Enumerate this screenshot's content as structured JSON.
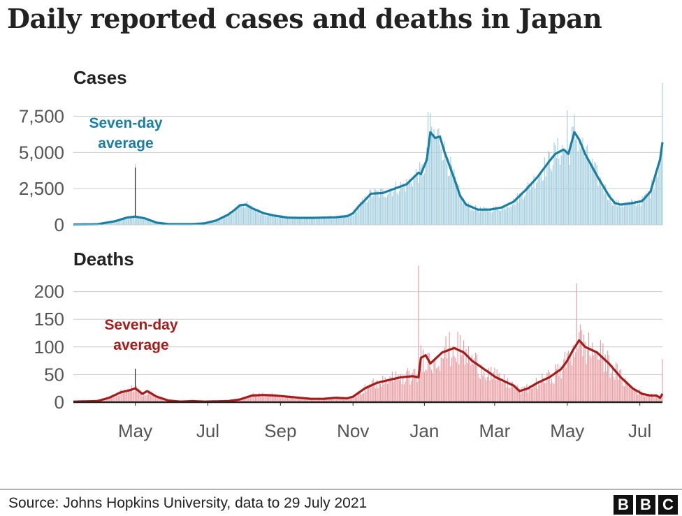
{
  "title": "Daily reported cases and deaths in Japan",
  "source": "Source: Johns Hopkins University, data to 29 July 2021",
  "logo": [
    "B",
    "B",
    "C"
  ],
  "colors": {
    "cases_bar": "#a6cfdf",
    "cases_line": "#1a7fa0",
    "deaths_bar": "#e8a1a6",
    "deaths_line": "#a31d1d",
    "grid": "#cccccc",
    "axis": "#222222"
  },
  "chart_data": [
    {
      "type": "bar+line",
      "title": "Cases",
      "annotation": [
        "Seven-day",
        "average"
      ],
      "ylim": [
        0,
        9500
      ],
      "yticks": [
        0,
        2500,
        5000,
        7500
      ],
      "ytick_labels": [
        "0",
        "2,500",
        "5,000",
        "7,500"
      ],
      "x_start_day": 0,
      "x_end_day": 495,
      "xtick_days": [
        52,
        113,
        174,
        235,
        295,
        354,
        415,
        476
      ],
      "xtick_labels": [
        "May",
        "Jul",
        "Sep",
        "Nov",
        "Jan",
        "Mar",
        "May",
        "Jul"
      ],
      "series_name": "Seven-day average",
      "average_keypoints": [
        [
          0,
          20
        ],
        [
          20,
          40
        ],
        [
          35,
          250
        ],
        [
          45,
          500
        ],
        [
          52,
          570
        ],
        [
          60,
          450
        ],
        [
          70,
          150
        ],
        [
          80,
          50
        ],
        [
          100,
          50
        ],
        [
          110,
          100
        ],
        [
          120,
          300
        ],
        [
          130,
          700
        ],
        [
          135,
          1000
        ],
        [
          140,
          1350
        ],
        [
          145,
          1400
        ],
        [
          150,
          1150
        ],
        [
          160,
          800
        ],
        [
          170,
          620
        ],
        [
          180,
          500
        ],
        [
          190,
          480
        ],
        [
          200,
          480
        ],
        [
          210,
          500
        ],
        [
          220,
          520
        ],
        [
          230,
          600
        ],
        [
          235,
          800
        ],
        [
          240,
          1300
        ],
        [
          245,
          1700
        ],
        [
          250,
          2150
        ],
        [
          260,
          2200
        ],
        [
          270,
          2500
        ],
        [
          280,
          2800
        ],
        [
          290,
          3600
        ],
        [
          292,
          3500
        ],
        [
          297,
          4500
        ],
        [
          300,
          6400
        ],
        [
          304,
          6000
        ],
        [
          308,
          6100
        ],
        [
          312,
          5000
        ],
        [
          320,
          3200
        ],
        [
          325,
          2000
        ],
        [
          330,
          1400
        ],
        [
          340,
          1050
        ],
        [
          350,
          1050
        ],
        [
          360,
          1200
        ],
        [
          370,
          1600
        ],
        [
          380,
          2400
        ],
        [
          390,
          3300
        ],
        [
          400,
          4400
        ],
        [
          405,
          4900
        ],
        [
          412,
          5200
        ],
        [
          416,
          4900
        ],
        [
          421,
          6400
        ],
        [
          425,
          5900
        ],
        [
          430,
          4900
        ],
        [
          440,
          3400
        ],
        [
          450,
          2000
        ],
        [
          455,
          1500
        ],
        [
          460,
          1400
        ],
        [
          470,
          1500
        ],
        [
          478,
          1650
        ],
        [
          485,
          2300
        ],
        [
          490,
          3700
        ],
        [
          493,
          4500
        ],
        [
          495,
          5700
        ]
      ],
      "bar_noise": 0.22,
      "bar_spikes": [
        [
          52,
          4200
        ],
        [
          298,
          7800
        ],
        [
          415,
          7900
        ],
        [
          421,
          7600
        ],
        [
          495,
          9800
        ]
      ],
      "marker_day": 52
    },
    {
      "type": "bar+line",
      "title": "Deaths",
      "annotation": [
        "Seven-day",
        "average"
      ],
      "ylim": [
        0,
        250
      ],
      "yticks": [
        0,
        50,
        100,
        150,
        200
      ],
      "ytick_labels": [
        "0",
        "50",
        "100",
        "150",
        "200"
      ],
      "x_start_day": 0,
      "x_end_day": 495,
      "xtick_days": [
        52,
        113,
        174,
        235,
        295,
        354,
        415,
        476
      ],
      "xtick_labels": [
        "May",
        "Jul",
        "Sep",
        "Nov",
        "Jan",
        "Mar",
        "May",
        "Jul"
      ],
      "series_name": "Seven-day average",
      "average_keypoints": [
        [
          0,
          1
        ],
        [
          20,
          2
        ],
        [
          30,
          8
        ],
        [
          40,
          18
        ],
        [
          48,
          22
        ],
        [
          52,
          25
        ],
        [
          58,
          15
        ],
        [
          62,
          20
        ],
        [
          70,
          10
        ],
        [
          80,
          3
        ],
        [
          90,
          1
        ],
        [
          100,
          2
        ],
        [
          110,
          1
        ],
        [
          130,
          2
        ],
        [
          140,
          5
        ],
        [
          150,
          12
        ],
        [
          160,
          13
        ],
        [
          170,
          12
        ],
        [
          180,
          10
        ],
        [
          190,
          8
        ],
        [
          200,
          6
        ],
        [
          210,
          6
        ],
        [
          220,
          8
        ],
        [
          230,
          7
        ],
        [
          235,
          10
        ],
        [
          245,
          25
        ],
        [
          255,
          35
        ],
        [
          265,
          40
        ],
        [
          275,
          45
        ],
        [
          285,
          47
        ],
        [
          290,
          45
        ],
        [
          292,
          80
        ],
        [
          296,
          85
        ],
        [
          300,
          70
        ],
        [
          310,
          90
        ],
        [
          320,
          98
        ],
        [
          328,
          90
        ],
        [
          335,
          75
        ],
        [
          345,
          60
        ],
        [
          355,
          45
        ],
        [
          365,
          35
        ],
        [
          370,
          30
        ],
        [
          375,
          20
        ],
        [
          382,
          25
        ],
        [
          390,
          35
        ],
        [
          400,
          45
        ],
        [
          410,
          60
        ],
        [
          415,
          75
        ],
        [
          420,
          95
        ],
        [
          425,
          112
        ],
        [
          430,
          100
        ],
        [
          440,
          90
        ],
        [
          450,
          70
        ],
        [
          460,
          45
        ],
        [
          470,
          25
        ],
        [
          478,
          15
        ],
        [
          485,
          12
        ],
        [
          490,
          12
        ],
        [
          493,
          8
        ],
        [
          495,
          15
        ]
      ],
      "bar_noise": 0.35,
      "bar_spikes": [
        [
          290,
          247
        ],
        [
          423,
          215
        ],
        [
          495,
          78
        ]
      ],
      "marker_day": 52
    }
  ]
}
